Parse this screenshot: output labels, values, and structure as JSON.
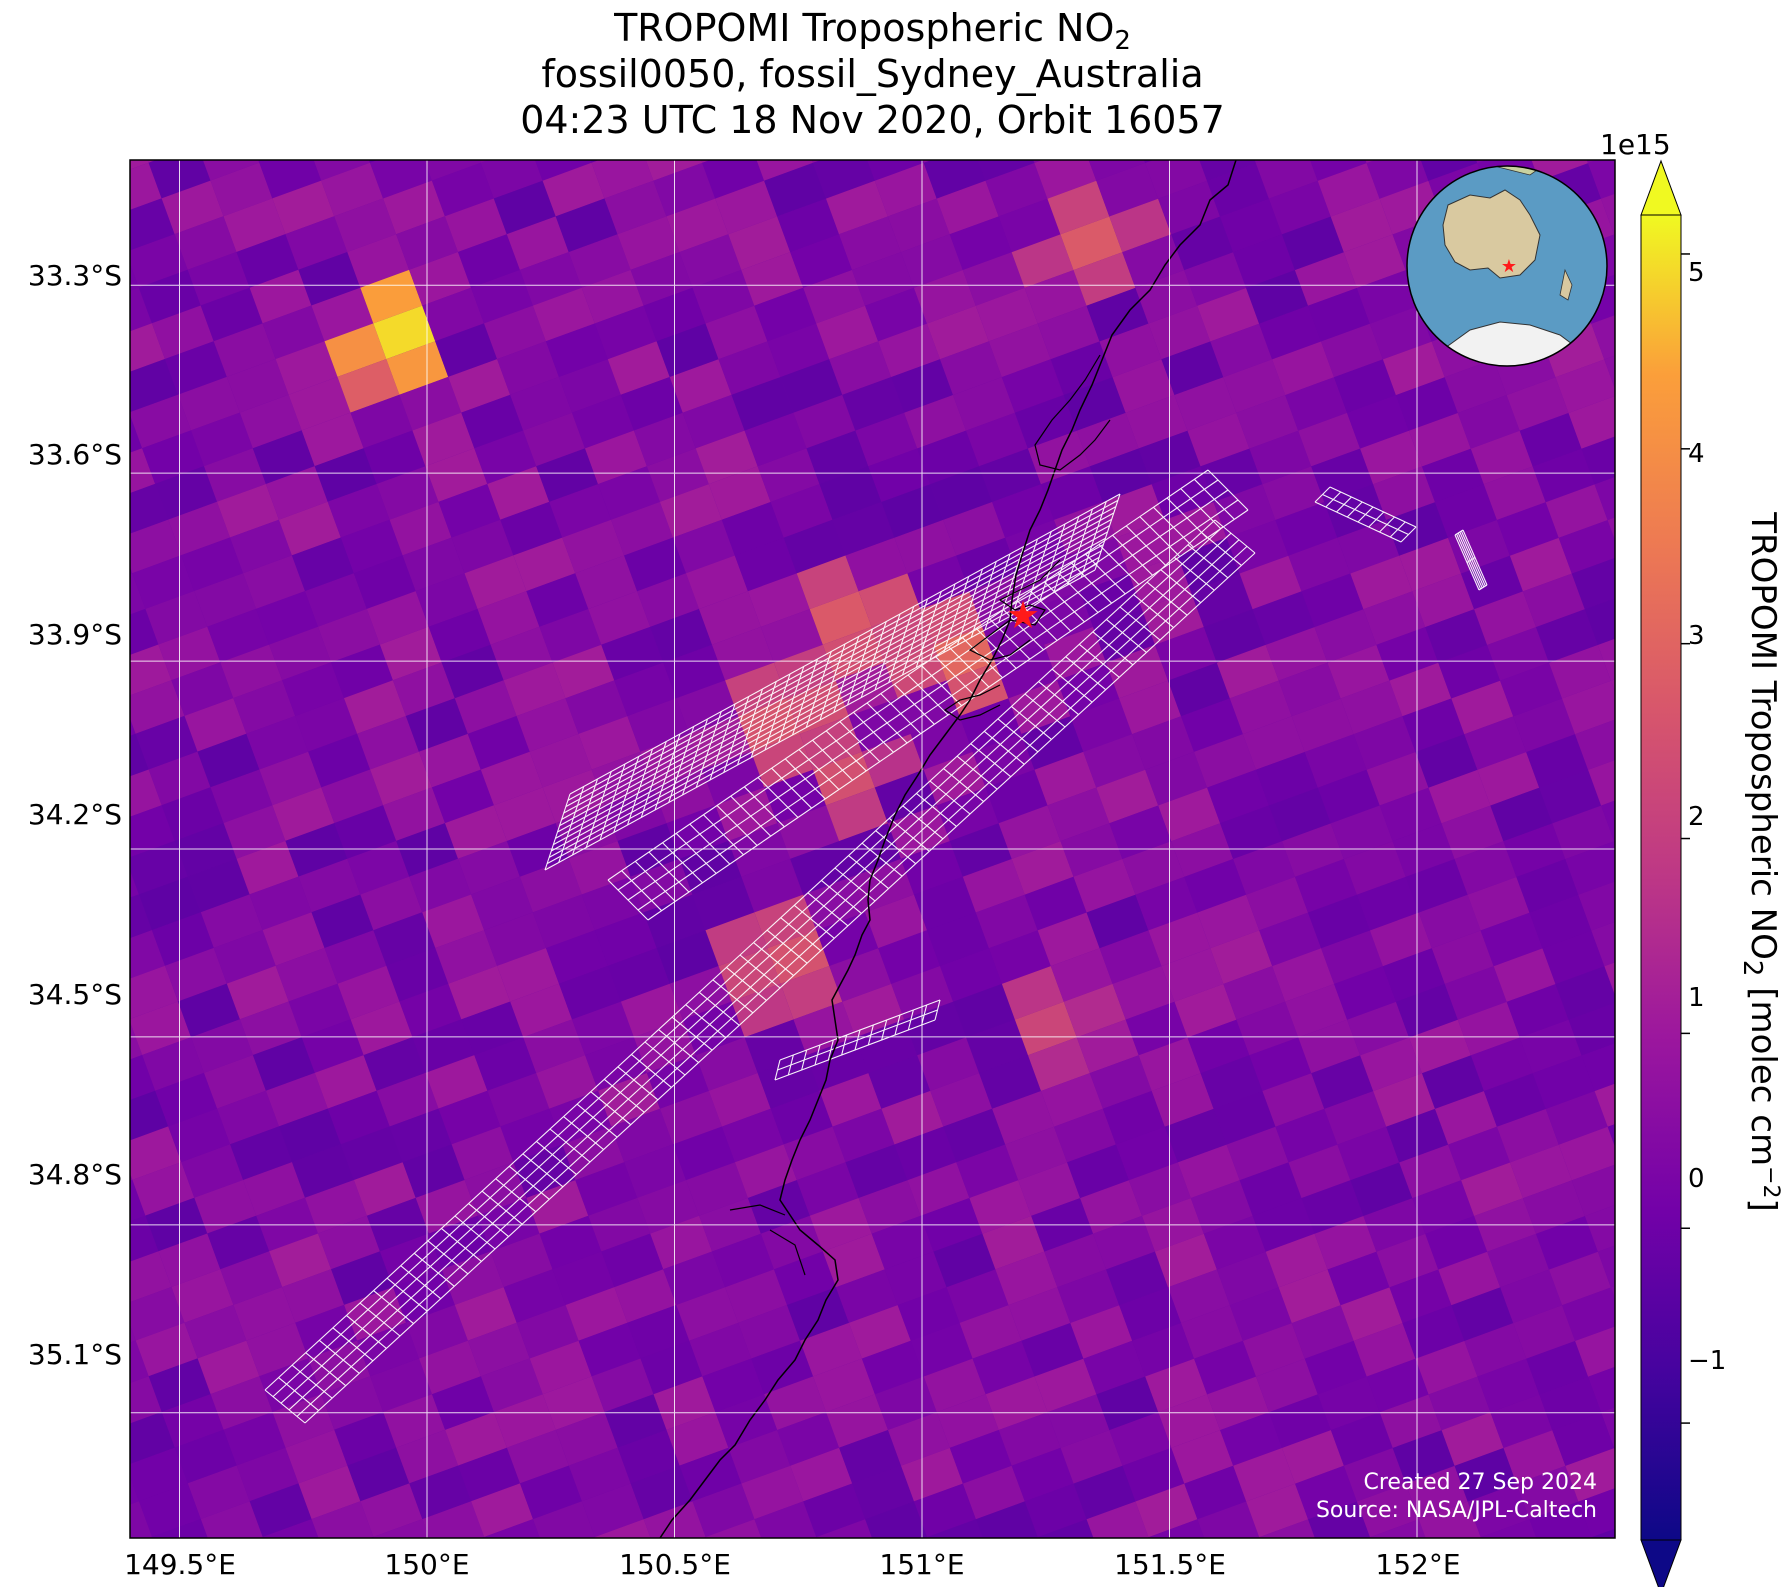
{
  "title": {
    "line1_prefix": "TROPOMI Tropospheric NO",
    "line1_sub": "2",
    "line2": "fossil0050, fossil_Sydney_Australia",
    "line3": "04:23 UTC 18 Nov 2020, Orbit 16057"
  },
  "axes": {
    "y_ticks": [
      "33.3°S",
      "33.6°S",
      "33.9°S",
      "34.2°S",
      "34.5°S",
      "34.8°S",
      "35.1°S"
    ],
    "x_ticks": [
      "149.5°E",
      "150°E",
      "150.5°E",
      "151°E",
      "151.5°E",
      "152°E"
    ],
    "lon_range": [
      149.4,
      152.4
    ],
    "lat_range": [
      -35.3,
      -33.1
    ]
  },
  "colorbar": {
    "exponent": "1e15",
    "ticks": [
      "−1",
      "0",
      "1",
      "2",
      "3",
      "4",
      "5"
    ],
    "label_prefix": "TROPOMI Tropospheric NO",
    "label_sub": "2",
    "label_suffix": " [molec cm",
    "label_sup": "−2",
    "label_end": "]",
    "range": [
      -1.6,
      5.2
    ],
    "colormap": "plasma"
  },
  "site": {
    "name": "Sydney",
    "lon": 151.21,
    "lat": -33.87,
    "marker_color": "#ff0000"
  },
  "credits": {
    "created": "Created 27 Sep 2024",
    "source": "Source: NASA/JPL-Caltech"
  },
  "colors": {
    "grid": "#ffffff",
    "coast": "#000000",
    "ocean_globe": "#5b9bc4",
    "land_globe": "#d9c9a0"
  }
}
